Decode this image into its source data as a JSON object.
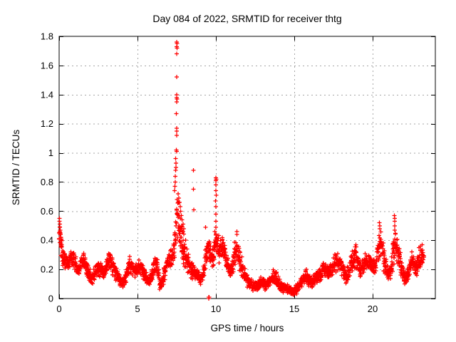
{
  "chart_data": {
    "type": "scatter",
    "title": "Day 084 of 2022, SRMTID for receiver thtg",
    "xlabel": "GPS time / hours",
    "ylabel": "SRMTID / TECUs",
    "xlim": [
      0,
      24
    ],
    "ylim": [
      0,
      1.8
    ],
    "xticks": [
      0,
      5,
      10,
      15,
      20
    ],
    "xtick_labels": [
      "0",
      "5",
      "10",
      "15",
      "20"
    ],
    "yticks": [
      0,
      0.2,
      0.4,
      0.6,
      0.8,
      1,
      1.2,
      1.4,
      1.6,
      1.8
    ],
    "ytick_labels": [
      "0",
      "0.2",
      "0.4",
      "0.6",
      "0.8",
      "1",
      "1.2",
      "1.4",
      "1.6",
      "1.8"
    ],
    "grid": true,
    "legend": "none",
    "marker": "plus",
    "series_color": "#ff0000",
    "grid_color": "#a6a6a6",
    "frame_color": "#000000",
    "background_color": "#ffffff",
    "band_note": "dense scatter envelope digitized from plot: [t_hours, min_TECUs, max_TECUs] per 0.1 h bin",
    "band": [
      [
        0.0,
        0.3,
        0.55
      ],
      [
        0.1,
        0.26,
        0.46
      ],
      [
        0.2,
        0.22,
        0.38
      ],
      [
        0.3,
        0.2,
        0.33
      ],
      [
        0.4,
        0.19,
        0.31
      ],
      [
        0.5,
        0.18,
        0.3
      ],
      [
        0.6,
        0.2,
        0.31
      ],
      [
        0.7,
        0.22,
        0.33
      ],
      [
        0.8,
        0.21,
        0.33
      ],
      [
        0.9,
        0.22,
        0.34
      ],
      [
        1.0,
        0.18,
        0.3
      ],
      [
        1.1,
        0.15,
        0.27
      ],
      [
        1.2,
        0.14,
        0.26
      ],
      [
        1.3,
        0.16,
        0.28
      ],
      [
        1.4,
        0.18,
        0.31
      ],
      [
        1.5,
        0.2,
        0.33
      ],
      [
        1.6,
        0.18,
        0.32
      ],
      [
        1.7,
        0.15,
        0.28
      ],
      [
        1.8,
        0.13,
        0.24
      ],
      [
        1.9,
        0.11,
        0.22
      ],
      [
        2.0,
        0.1,
        0.2
      ],
      [
        2.1,
        0.1,
        0.19
      ],
      [
        2.2,
        0.11,
        0.21
      ],
      [
        2.3,
        0.13,
        0.24
      ],
      [
        2.4,
        0.14,
        0.26
      ],
      [
        2.5,
        0.15,
        0.26
      ],
      [
        2.6,
        0.14,
        0.25
      ],
      [
        2.7,
        0.13,
        0.23
      ],
      [
        2.8,
        0.12,
        0.22
      ],
      [
        2.9,
        0.14,
        0.25
      ],
      [
        3.0,
        0.17,
        0.29
      ],
      [
        3.1,
        0.19,
        0.32
      ],
      [
        3.2,
        0.2,
        0.34
      ],
      [
        3.3,
        0.18,
        0.31
      ],
      [
        3.4,
        0.15,
        0.27
      ],
      [
        3.5,
        0.13,
        0.24
      ],
      [
        3.6,
        0.12,
        0.22
      ],
      [
        3.7,
        0.11,
        0.2
      ],
      [
        3.8,
        0.1,
        0.18
      ],
      [
        3.9,
        0.08,
        0.16
      ],
      [
        4.0,
        0.07,
        0.15
      ],
      [
        4.1,
        0.08,
        0.16
      ],
      [
        4.2,
        0.1,
        0.19
      ],
      [
        4.3,
        0.13,
        0.23
      ],
      [
        4.4,
        0.15,
        0.27
      ],
      [
        4.5,
        0.17,
        0.3
      ],
      [
        4.6,
        0.16,
        0.28
      ],
      [
        4.7,
        0.14,
        0.26
      ],
      [
        4.8,
        0.13,
        0.24
      ],
      [
        4.9,
        0.14,
        0.25
      ],
      [
        5.0,
        0.15,
        0.27
      ],
      [
        5.1,
        0.16,
        0.28
      ],
      [
        5.2,
        0.15,
        0.26
      ],
      [
        5.3,
        0.13,
        0.24
      ],
      [
        5.4,
        0.12,
        0.22
      ],
      [
        5.5,
        0.1,
        0.2
      ],
      [
        5.6,
        0.09,
        0.18
      ],
      [
        5.7,
        0.08,
        0.17
      ],
      [
        5.8,
        0.09,
        0.18
      ],
      [
        5.9,
        0.11,
        0.21
      ],
      [
        6.0,
        0.14,
        0.26
      ],
      [
        6.1,
        0.17,
        0.3
      ],
      [
        6.2,
        0.15,
        0.28
      ],
      [
        6.3,
        0.12,
        0.24
      ],
      [
        6.4,
        0.05,
        0.14
      ],
      [
        6.5,
        0.05,
        0.13
      ],
      [
        6.6,
        0.08,
        0.18
      ],
      [
        6.7,
        0.12,
        0.24
      ],
      [
        6.8,
        0.16,
        0.28
      ],
      [
        6.9,
        0.18,
        0.31
      ],
      [
        7.0,
        0.2,
        0.33
      ],
      [
        7.1,
        0.2,
        0.34
      ],
      [
        7.2,
        0.22,
        0.36
      ],
      [
        7.3,
        0.25,
        0.45
      ],
      [
        7.4,
        0.3,
        0.6
      ],
      [
        7.5,
        0.32,
        0.75
      ],
      [
        7.6,
        0.3,
        0.7
      ],
      [
        7.7,
        0.28,
        0.6
      ],
      [
        7.8,
        0.25,
        0.55
      ],
      [
        7.9,
        0.22,
        0.48
      ],
      [
        8.0,
        0.2,
        0.42
      ],
      [
        8.1,
        0.18,
        0.36
      ],
      [
        8.2,
        0.16,
        0.32
      ],
      [
        8.3,
        0.15,
        0.3
      ],
      [
        8.4,
        0.14,
        0.28
      ],
      [
        8.5,
        0.13,
        0.26
      ],
      [
        8.6,
        0.12,
        0.24
      ],
      [
        8.7,
        0.11,
        0.22
      ],
      [
        8.8,
        0.1,
        0.2
      ],
      [
        8.9,
        0.09,
        0.19
      ],
      [
        9.0,
        0.09,
        0.18
      ],
      [
        9.1,
        0.1,
        0.2
      ],
      [
        9.2,
        0.12,
        0.24
      ],
      [
        9.3,
        0.18,
        0.36
      ],
      [
        9.4,
        0.22,
        0.42
      ],
      [
        9.5,
        0.25,
        0.45
      ],
      [
        9.6,
        0.22,
        0.4
      ],
      [
        9.7,
        0.18,
        0.34
      ],
      [
        9.8,
        0.2,
        0.38
      ],
      [
        9.9,
        0.25,
        0.45
      ],
      [
        10.0,
        0.28,
        0.5
      ],
      [
        10.1,
        0.25,
        0.46
      ],
      [
        10.2,
        0.22,
        0.42
      ],
      [
        10.3,
        0.25,
        0.44
      ],
      [
        10.4,
        0.28,
        0.46
      ],
      [
        10.5,
        0.25,
        0.42
      ],
      [
        10.6,
        0.2,
        0.36
      ],
      [
        10.7,
        0.16,
        0.3
      ],
      [
        10.8,
        0.13,
        0.26
      ],
      [
        10.9,
        0.12,
        0.24
      ],
      [
        11.0,
        0.14,
        0.28
      ],
      [
        11.1,
        0.18,
        0.34
      ],
      [
        11.2,
        0.22,
        0.4
      ],
      [
        11.3,
        0.24,
        0.44
      ],
      [
        11.4,
        0.22,
        0.42
      ],
      [
        11.5,
        0.18,
        0.36
      ],
      [
        11.6,
        0.14,
        0.3
      ],
      [
        11.7,
        0.12,
        0.26
      ],
      [
        11.8,
        0.1,
        0.22
      ],
      [
        11.9,
        0.08,
        0.2
      ],
      [
        12.0,
        0.07,
        0.18
      ],
      [
        12.1,
        0.06,
        0.16
      ],
      [
        12.2,
        0.05,
        0.14
      ],
      [
        12.3,
        0.05,
        0.13
      ],
      [
        12.4,
        0.04,
        0.12
      ],
      [
        12.5,
        0.04,
        0.12
      ],
      [
        12.6,
        0.05,
        0.13
      ],
      [
        12.7,
        0.05,
        0.14
      ],
      [
        12.8,
        0.06,
        0.15
      ],
      [
        12.9,
        0.06,
        0.15
      ],
      [
        13.0,
        0.06,
        0.14
      ],
      [
        13.1,
        0.05,
        0.13
      ],
      [
        13.2,
        0.05,
        0.13
      ],
      [
        13.3,
        0.06,
        0.14
      ],
      [
        13.4,
        0.07,
        0.16
      ],
      [
        13.5,
        0.08,
        0.18
      ],
      [
        13.6,
        0.09,
        0.2
      ],
      [
        13.7,
        0.09,
        0.21
      ],
      [
        13.8,
        0.08,
        0.19
      ],
      [
        13.9,
        0.07,
        0.17
      ],
      [
        14.0,
        0.06,
        0.15
      ],
      [
        14.1,
        0.05,
        0.13
      ],
      [
        14.2,
        0.04,
        0.12
      ],
      [
        14.3,
        0.04,
        0.11
      ],
      [
        14.4,
        0.04,
        0.11
      ],
      [
        14.5,
        0.03,
        0.1
      ],
      [
        14.6,
        0.03,
        0.1
      ],
      [
        14.7,
        0.03,
        0.09
      ],
      [
        14.8,
        0.02,
        0.09
      ],
      [
        14.9,
        0.02,
        0.08
      ],
      [
        15.0,
        0.03,
        0.09
      ],
      [
        15.1,
        0.03,
        0.1
      ],
      [
        15.2,
        0.04,
        0.11
      ],
      [
        15.3,
        0.05,
        0.13
      ],
      [
        15.4,
        0.07,
        0.16
      ],
      [
        15.5,
        0.08,
        0.18
      ],
      [
        15.6,
        0.1,
        0.2
      ],
      [
        15.7,
        0.1,
        0.21
      ],
      [
        15.8,
        0.09,
        0.2
      ],
      [
        15.9,
        0.08,
        0.18
      ],
      [
        16.0,
        0.07,
        0.17
      ],
      [
        16.1,
        0.07,
        0.16
      ],
      [
        16.2,
        0.08,
        0.17
      ],
      [
        16.3,
        0.09,
        0.18
      ],
      [
        16.4,
        0.1,
        0.2
      ],
      [
        16.5,
        0.1,
        0.21
      ],
      [
        16.6,
        0.11,
        0.22
      ],
      [
        16.7,
        0.12,
        0.23
      ],
      [
        16.8,
        0.13,
        0.25
      ],
      [
        16.9,
        0.14,
        0.26
      ],
      [
        17.0,
        0.13,
        0.25
      ],
      [
        17.1,
        0.12,
        0.24
      ],
      [
        17.2,
        0.12,
        0.24
      ],
      [
        17.3,
        0.13,
        0.26
      ],
      [
        17.4,
        0.15,
        0.28
      ],
      [
        17.5,
        0.17,
        0.3
      ],
      [
        17.6,
        0.18,
        0.32
      ],
      [
        17.7,
        0.19,
        0.33
      ],
      [
        17.8,
        0.18,
        0.32
      ],
      [
        17.9,
        0.17,
        0.3
      ],
      [
        18.0,
        0.15,
        0.28
      ],
      [
        18.1,
        0.13,
        0.25
      ],
      [
        18.2,
        0.11,
        0.22
      ],
      [
        18.3,
        0.09,
        0.2
      ],
      [
        18.4,
        0.11,
        0.23
      ],
      [
        18.5,
        0.14,
        0.27
      ],
      [
        18.6,
        0.17,
        0.31
      ],
      [
        18.7,
        0.18,
        0.34
      ],
      [
        18.8,
        0.19,
        0.36
      ],
      [
        18.9,
        0.2,
        0.38
      ],
      [
        19.0,
        0.18,
        0.34
      ],
      [
        19.1,
        0.15,
        0.29
      ],
      [
        19.2,
        0.13,
        0.26
      ],
      [
        19.3,
        0.14,
        0.27
      ],
      [
        19.4,
        0.16,
        0.29
      ],
      [
        19.5,
        0.17,
        0.31
      ],
      [
        19.6,
        0.18,
        0.32
      ],
      [
        19.7,
        0.18,
        0.33
      ],
      [
        19.8,
        0.17,
        0.31
      ],
      [
        19.9,
        0.16,
        0.29
      ],
      [
        20.0,
        0.15,
        0.28
      ],
      [
        20.1,
        0.16,
        0.3
      ],
      [
        20.2,
        0.18,
        0.33
      ],
      [
        20.3,
        0.22,
        0.4
      ],
      [
        20.4,
        0.26,
        0.48
      ],
      [
        20.5,
        0.28,
        0.5
      ],
      [
        20.6,
        0.24,
        0.44
      ],
      [
        20.7,
        0.18,
        0.35
      ],
      [
        20.8,
        0.15,
        0.28
      ],
      [
        20.9,
        0.13,
        0.25
      ],
      [
        21.0,
        0.12,
        0.24
      ],
      [
        21.1,
        0.13,
        0.26
      ],
      [
        21.2,
        0.16,
        0.32
      ],
      [
        21.3,
        0.22,
        0.44
      ],
      [
        21.4,
        0.26,
        0.52
      ],
      [
        21.5,
        0.24,
        0.46
      ],
      [
        21.6,
        0.22,
        0.42
      ],
      [
        21.7,
        0.18,
        0.35
      ],
      [
        21.8,
        0.14,
        0.28
      ],
      [
        21.9,
        0.11,
        0.23
      ],
      [
        22.0,
        0.09,
        0.2
      ],
      [
        22.1,
        0.08,
        0.18
      ],
      [
        22.2,
        0.1,
        0.22
      ],
      [
        22.3,
        0.13,
        0.26
      ],
      [
        22.4,
        0.16,
        0.3
      ],
      [
        22.5,
        0.18,
        0.32
      ],
      [
        22.6,
        0.17,
        0.31
      ],
      [
        22.7,
        0.15,
        0.28
      ],
      [
        22.8,
        0.14,
        0.3
      ],
      [
        22.9,
        0.16,
        0.33
      ],
      [
        23.0,
        0.18,
        0.35
      ],
      [
        23.1,
        0.2,
        0.36
      ],
      [
        23.2,
        0.22,
        0.35
      ]
    ],
    "outliers_note": "individually visible points: [t_hours, TECUs]",
    "outliers": [
      [
        0.02,
        0.55
      ],
      [
        0.03,
        0.53
      ],
      [
        0.04,
        0.51
      ],
      [
        0.05,
        0.49
      ],
      [
        0.07,
        0.47
      ],
      [
        0.09,
        0.44
      ],
      [
        0.11,
        0.42
      ],
      [
        0.13,
        0.4
      ],
      [
        0.16,
        0.37
      ],
      [
        7.5,
        1.76
      ],
      [
        7.52,
        1.75
      ],
      [
        7.51,
        1.73
      ],
      [
        7.53,
        1.72
      ],
      [
        7.5,
        1.68
      ],
      [
        7.49,
        1.52
      ],
      [
        7.5,
        1.4
      ],
      [
        7.51,
        1.38
      ],
      [
        7.52,
        1.37
      ],
      [
        7.5,
        1.35
      ],
      [
        7.48,
        1.27
      ],
      [
        7.49,
        1.17
      ],
      [
        7.5,
        1.15
      ],
      [
        7.51,
        1.12
      ],
      [
        7.47,
        1.02
      ],
      [
        7.49,
        1.01
      ],
      [
        7.44,
        0.96
      ],
      [
        7.46,
        0.93
      ],
      [
        7.45,
        0.9
      ],
      [
        7.43,
        0.88
      ],
      [
        7.4,
        0.84
      ],
      [
        7.42,
        0.8
      ],
      [
        7.38,
        0.77
      ],
      [
        7.36,
        0.74
      ],
      [
        7.6,
        0.72
      ],
      [
        7.64,
        0.69
      ],
      [
        7.68,
        0.66
      ],
      [
        7.72,
        0.63
      ],
      [
        7.76,
        0.6
      ],
      [
        7.8,
        0.57
      ],
      [
        7.85,
        0.54
      ],
      [
        7.9,
        0.51
      ],
      [
        7.95,
        0.48
      ],
      [
        8.57,
        0.88
      ],
      [
        8.56,
        0.75
      ],
      [
        8.58,
        0.61
      ],
      [
        9.35,
        0.49
      ],
      [
        9.54,
        0.01
      ],
      [
        9.55,
        0.0
      ],
      [
        9.56,
        0.01
      ],
      [
        9.93,
        0.46
      ],
      [
        10.0,
        0.83
      ],
      [
        10.02,
        0.82
      ],
      [
        9.99,
        0.81
      ],
      [
        10.01,
        0.78
      ],
      [
        10.0,
        0.74
      ],
      [
        10.02,
        0.71
      ],
      [
        9.98,
        0.67
      ],
      [
        10.0,
        0.63
      ],
      [
        10.01,
        0.58
      ],
      [
        9.99,
        0.53
      ],
      [
        10.0,
        0.49
      ],
      [
        11.33,
        0.46
      ],
      [
        11.35,
        0.44
      ],
      [
        20.44,
        0.52
      ],
      [
        20.45,
        0.5
      ],
      [
        20.46,
        0.48
      ],
      [
        21.39,
        0.57
      ],
      [
        21.4,
        0.55
      ],
      [
        21.41,
        0.53
      ],
      [
        21.42,
        0.5
      ],
      [
        22.95,
        0.35
      ],
      [
        23.05,
        0.36
      ],
      [
        23.15,
        0.37
      ]
    ]
  }
}
